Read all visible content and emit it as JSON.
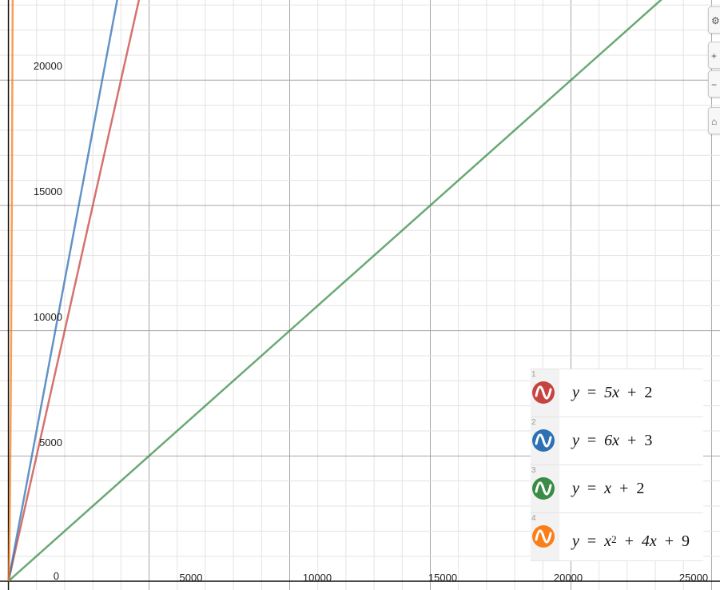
{
  "graph": {
    "x_tick_labels": [
      "0",
      "5000",
      "10000",
      "15000",
      "20000",
      "25000"
    ],
    "y_tick_labels": [
      "5000",
      "10000",
      "15000",
      "20000"
    ]
  },
  "chart_data": {
    "type": "line",
    "xlim": [
      -300,
      25300
    ],
    "ylim": [
      -350,
      23200
    ],
    "grid": true,
    "series": [
      {
        "name": "y = 5x + 2",
        "color": "#c74440",
        "slope": 5,
        "intercept": 2
      },
      {
        "name": "y = 6x + 3",
        "color": "#2d70b3",
        "slope": 6,
        "intercept": 3
      },
      {
        "name": "y = x + 2",
        "color": "#388c46",
        "slope": 1,
        "intercept": 2
      },
      {
        "name": "y = x^2 + 4x + 9",
        "color": "#fa7e19",
        "quadratic": [
          1,
          4,
          9
        ]
      }
    ]
  },
  "expressions": [
    {
      "num": "1",
      "color": "#c74440",
      "parts": [
        "y",
        "=",
        "5x",
        "+",
        "2"
      ]
    },
    {
      "num": "2",
      "color": "#2d70b3",
      "parts": [
        "y",
        "=",
        "6x",
        "+",
        "3"
      ]
    },
    {
      "num": "3",
      "color": "#388c46",
      "parts": [
        "y",
        "=",
        "x",
        "+",
        "2"
      ]
    },
    {
      "num": "4",
      "color": "#fa7e19",
      "parts": [
        "y",
        "=",
        "x",
        "2",
        "+",
        "4x",
        "+",
        "9"
      ]
    }
  ],
  "zoom_controls": [
    "wrench-icon",
    "zoom-in-icon",
    "zoom-out-icon",
    "home-icon"
  ]
}
